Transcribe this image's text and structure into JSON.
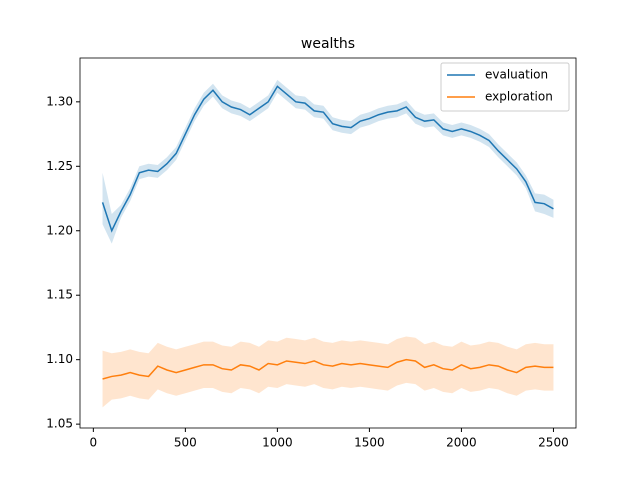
{
  "chart_data": {
    "type": "line",
    "title": "wealths",
    "x": [
      50,
      100,
      150,
      200,
      250,
      300,
      350,
      400,
      450,
      500,
      550,
      600,
      650,
      700,
      750,
      800,
      850,
      900,
      950,
      1000,
      1050,
      1100,
      1150,
      1200,
      1250,
      1300,
      1350,
      1400,
      1450,
      1500,
      1550,
      1600,
      1650,
      1700,
      1750,
      1800,
      1850,
      1900,
      1950,
      2000,
      2050,
      2100,
      2150,
      2200,
      2250,
      2300,
      2350,
      2400,
      2450,
      2500
    ],
    "series": [
      {
        "name": "evaluation",
        "color": "#1f77b4",
        "values": [
          1.222,
          1.2,
          1.215,
          1.228,
          1.245,
          1.247,
          1.246,
          1.252,
          1.26,
          1.275,
          1.29,
          1.302,
          1.309,
          1.3,
          1.296,
          1.294,
          1.29,
          1.295,
          1.3,
          1.312,
          1.306,
          1.3,
          1.299,
          1.293,
          1.292,
          1.283,
          1.281,
          1.28,
          1.285,
          1.287,
          1.29,
          1.292,
          1.293,
          1.296,
          1.288,
          1.285,
          1.286,
          1.279,
          1.277,
          1.279,
          1.277,
          1.274,
          1.27,
          1.262,
          1.255,
          1.248,
          1.238,
          1.222,
          1.221,
          1.217
        ],
        "lower": [
          1.205,
          1.19,
          1.21,
          1.223,
          1.24,
          1.242,
          1.241,
          1.247,
          1.255,
          1.27,
          1.285,
          1.297,
          1.304,
          1.295,
          1.291,
          1.289,
          1.285,
          1.29,
          1.295,
          1.307,
          1.301,
          1.295,
          1.294,
          1.288,
          1.287,
          1.278,
          1.276,
          1.275,
          1.28,
          1.282,
          1.285,
          1.287,
          1.288,
          1.291,
          1.283,
          1.28,
          1.281,
          1.274,
          1.272,
          1.274,
          1.272,
          1.269,
          1.265,
          1.257,
          1.25,
          1.243,
          1.233,
          1.215,
          1.213,
          1.21
        ],
        "upper": [
          1.245,
          1.213,
          1.22,
          1.233,
          1.25,
          1.252,
          1.251,
          1.257,
          1.265,
          1.28,
          1.295,
          1.307,
          1.314,
          1.305,
          1.301,
          1.299,
          1.295,
          1.3,
          1.305,
          1.317,
          1.311,
          1.305,
          1.304,
          1.298,
          1.297,
          1.288,
          1.286,
          1.285,
          1.29,
          1.292,
          1.295,
          1.297,
          1.298,
          1.301,
          1.293,
          1.29,
          1.291,
          1.284,
          1.282,
          1.284,
          1.282,
          1.279,
          1.275,
          1.267,
          1.26,
          1.253,
          1.243,
          1.229,
          1.228,
          1.224
        ]
      },
      {
        "name": "exploration",
        "color": "#ff7f0e",
        "values": [
          1.085,
          1.087,
          1.088,
          1.09,
          1.088,
          1.087,
          1.095,
          1.092,
          1.09,
          1.092,
          1.094,
          1.096,
          1.096,
          1.093,
          1.092,
          1.096,
          1.095,
          1.092,
          1.097,
          1.096,
          1.099,
          1.098,
          1.097,
          1.099,
          1.096,
          1.095,
          1.097,
          1.096,
          1.097,
          1.096,
          1.095,
          1.094,
          1.098,
          1.1,
          1.099,
          1.094,
          1.096,
          1.093,
          1.092,
          1.096,
          1.093,
          1.094,
          1.096,
          1.095,
          1.092,
          1.09,
          1.094,
          1.095,
          1.094,
          1.094
        ],
        "lower": [
          1.063,
          1.069,
          1.07,
          1.072,
          1.07,
          1.069,
          1.077,
          1.074,
          1.072,
          1.074,
          1.076,
          1.078,
          1.078,
          1.075,
          1.074,
          1.078,
          1.077,
          1.074,
          1.079,
          1.078,
          1.081,
          1.08,
          1.079,
          1.081,
          1.078,
          1.077,
          1.079,
          1.078,
          1.079,
          1.078,
          1.077,
          1.076,
          1.08,
          1.082,
          1.081,
          1.076,
          1.078,
          1.075,
          1.074,
          1.078,
          1.075,
          1.076,
          1.078,
          1.077,
          1.074,
          1.072,
          1.076,
          1.077,
          1.076,
          1.076
        ],
        "upper": [
          1.107,
          1.105,
          1.106,
          1.108,
          1.106,
          1.105,
          1.113,
          1.11,
          1.108,
          1.11,
          1.112,
          1.114,
          1.114,
          1.111,
          1.11,
          1.114,
          1.113,
          1.11,
          1.115,
          1.114,
          1.117,
          1.116,
          1.115,
          1.117,
          1.114,
          1.113,
          1.115,
          1.114,
          1.115,
          1.114,
          1.113,
          1.112,
          1.116,
          1.118,
          1.117,
          1.112,
          1.114,
          1.111,
          1.11,
          1.114,
          1.111,
          1.112,
          1.114,
          1.113,
          1.11,
          1.108,
          1.112,
          1.113,
          1.112,
          1.112
        ]
      }
    ],
    "xlim": [
      -72.5,
      2622.5
    ],
    "ylim": [
      1.047,
      1.334
    ],
    "xticks": [
      0,
      500,
      1000,
      1500,
      2000,
      2500
    ],
    "yticks": [
      1.05,
      {
        "value": 1.1,
        "label": "1.10"
      },
      1.15,
      {
        "value": 1.2,
        "label": "1.20"
      },
      1.25,
      {
        "value": 1.3,
        "label": "1.30"
      }
    ],
    "band_opacity": 0.2,
    "legend": "upper right"
  }
}
